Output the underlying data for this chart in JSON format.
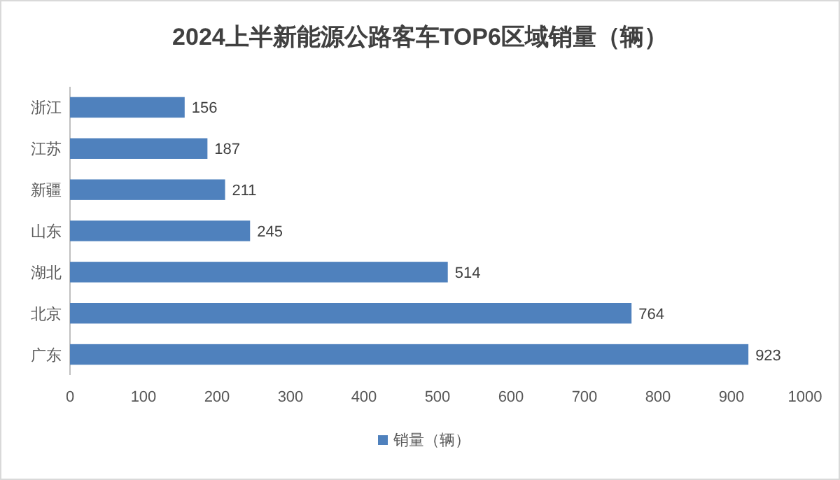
{
  "chart_data": {
    "type": "bar",
    "orientation": "horizontal",
    "title": "2024上半新能源公路客车TOP6区域销量（辆）",
    "categories": [
      "浙江",
      "江苏",
      "新疆",
      "山东",
      "湖北",
      "北京",
      "广东"
    ],
    "series": [
      {
        "name": "销量（辆）",
        "color": "#4f81bd",
        "values": [
          156,
          187,
          211,
          245,
          514,
          764,
          923
        ]
      }
    ],
    "xlim": [
      0,
      1000
    ],
    "xticks": [
      0,
      100,
      200,
      300,
      400,
      500,
      600,
      700,
      800,
      900,
      1000
    ],
    "data_labels": true,
    "legend": "bottom",
    "grid": false
  }
}
